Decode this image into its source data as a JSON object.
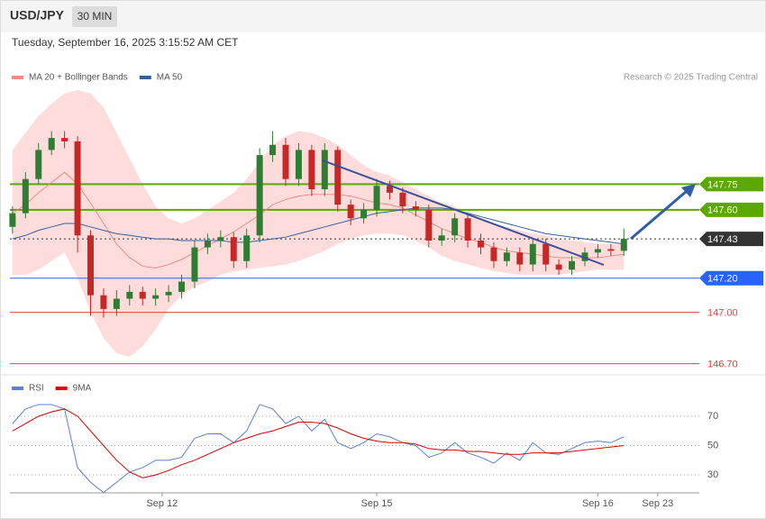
{
  "header": {
    "symbol": "USD/JPY",
    "interval": "30 MIN",
    "timestamp": "Tuesday, September 16, 2025 3:15:52 AM CET"
  },
  "chart_data": [
    {
      "type": "candlestick",
      "source": "Research © 2025 Trading Central",
      "xlim": [
        -0.2,
        52.8
      ],
      "ylim": [
        146.64,
        148.3
      ],
      "candles": {
        "up_color": "#2e7d32",
        "down_color": "#c62828",
        "open": [
          147.5,
          147.58,
          147.78,
          147.95,
          148.02,
          148.0,
          147.45,
          147.1,
          147.02,
          147.08,
          147.12,
          147.08,
          147.1,
          147.12,
          147.18,
          147.38,
          147.42,
          147.44,
          147.3,
          147.45,
          147.92,
          147.98,
          147.78,
          147.95,
          147.72,
          147.95,
          147.63,
          147.55,
          147.6,
          147.74,
          147.7,
          147.62,
          147.6,
          147.42,
          147.45,
          147.55,
          147.42,
          147.38,
          147.3,
          147.35,
          147.28,
          147.4,
          147.28,
          147.25,
          147.3,
          147.35,
          147.37,
          147.36
        ],
        "high": [
          147.62,
          147.82,
          147.99,
          148.06,
          148.06,
          148.03,
          147.48,
          147.14,
          147.13,
          147.16,
          147.15,
          147.14,
          147.16,
          147.22,
          147.42,
          147.46,
          147.48,
          147.47,
          147.49,
          147.96,
          148.06,
          148.02,
          147.99,
          147.98,
          147.99,
          147.97,
          147.66,
          147.64,
          147.78,
          147.77,
          147.73,
          147.65,
          147.63,
          147.49,
          147.58,
          147.58,
          147.46,
          147.41,
          147.38,
          147.38,
          147.43,
          147.43,
          147.31,
          147.33,
          147.38,
          147.4,
          147.4,
          147.49
        ],
        "low": [
          147.46,
          147.55,
          147.75,
          147.92,
          147.96,
          147.35,
          146.98,
          146.97,
          146.98,
          147.04,
          147.04,
          147.04,
          147.06,
          147.08,
          147.14,
          147.34,
          147.38,
          147.26,
          147.26,
          147.41,
          147.88,
          147.74,
          147.74,
          147.68,
          147.68,
          147.59,
          147.51,
          147.52,
          147.56,
          147.66,
          147.58,
          147.56,
          147.38,
          147.39,
          147.41,
          147.38,
          147.34,
          147.26,
          147.27,
          147.24,
          147.24,
          147.24,
          147.22,
          147.22,
          147.27,
          147.32,
          147.33,
          147.33
        ],
        "close": [
          147.58,
          147.78,
          147.95,
          148.02,
          148.0,
          147.45,
          147.1,
          147.02,
          147.08,
          147.12,
          147.08,
          147.1,
          147.12,
          147.18,
          147.38,
          147.42,
          147.44,
          147.3,
          147.45,
          147.92,
          147.98,
          147.78,
          147.95,
          147.72,
          147.95,
          147.63,
          147.55,
          147.6,
          147.74,
          147.7,
          147.62,
          147.6,
          147.42,
          147.45,
          147.55,
          147.42,
          147.38,
          147.3,
          147.35,
          147.28,
          147.4,
          147.28,
          147.25,
          147.3,
          147.35,
          147.37,
          147.36,
          147.43
        ]
      },
      "series": [
        {
          "name": "MA 20 + Bollinger Bands",
          "color": "#f28b82",
          "band_color": "#ffdcdc",
          "values": [
            147.58,
            147.63,
            147.7,
            147.76,
            147.82,
            147.75,
            147.64,
            147.52,
            147.4,
            147.32,
            147.27,
            147.26,
            147.28,
            147.31,
            147.35,
            147.39,
            147.43,
            147.47,
            147.52,
            147.57,
            147.63,
            147.66,
            147.68,
            147.69,
            147.69,
            147.69,
            147.68,
            147.66,
            147.64,
            147.63,
            147.61,
            147.57,
            147.53,
            147.49,
            147.46,
            147.43,
            147.41,
            147.38,
            147.36,
            147.35,
            147.34,
            147.33,
            147.32,
            147.32,
            147.32,
            147.32,
            147.33,
            147.34
          ],
          "upper": [
            147.95,
            148.05,
            148.15,
            148.22,
            148.28,
            148.3,
            148.28,
            148.2,
            148.05,
            147.9,
            147.75,
            147.62,
            147.55,
            147.52,
            147.55,
            147.6,
            147.65,
            147.7,
            147.78,
            147.88,
            147.98,
            148.03,
            148.06,
            148.05,
            148.02,
            147.98,
            147.92,
            147.86,
            147.82,
            147.8,
            147.76,
            147.72,
            147.68,
            147.64,
            147.62,
            147.58,
            147.55,
            147.52,
            147.5,
            147.48,
            147.46,
            147.45,
            147.43,
            147.42,
            147.41,
            147.4,
            147.4,
            147.4
          ],
          "lower": [
            147.22,
            147.22,
            147.25,
            147.3,
            147.35,
            147.2,
            147.0,
            146.85,
            146.76,
            146.74,
            146.8,
            146.9,
            147.02,
            147.1,
            147.15,
            147.18,
            147.22,
            147.24,
            147.25,
            147.26,
            147.27,
            147.28,
            147.3,
            147.33,
            147.36,
            147.4,
            147.43,
            147.45,
            147.46,
            147.46,
            147.45,
            147.42,
            147.38,
            147.33,
            147.3,
            147.28,
            147.26,
            147.24,
            147.23,
            147.22,
            147.22,
            147.22,
            147.22,
            147.23,
            147.24,
            147.25,
            147.25,
            147.25
          ]
        },
        {
          "name": "MA 50",
          "color": "#34609e",
          "values": [
            147.43,
            147.45,
            147.48,
            147.5,
            147.52,
            147.52,
            147.5,
            147.48,
            147.46,
            147.45,
            147.44,
            147.43,
            147.43,
            147.42,
            147.42,
            147.42,
            147.42,
            147.41,
            147.41,
            147.42,
            147.43,
            147.44,
            147.46,
            147.48,
            147.5,
            147.52,
            147.54,
            147.56,
            147.58,
            147.59,
            147.6,
            147.61,
            147.61,
            147.61,
            147.6,
            147.58,
            147.56,
            147.54,
            147.52,
            147.5,
            147.48,
            147.46,
            147.45,
            147.44,
            147.43,
            147.42,
            147.41,
            147.4
          ]
        }
      ],
      "levels": [
        {
          "value": 147.75,
          "color": "#5aa800",
          "boxed": true
        },
        {
          "value": 147.6,
          "label": "147.60",
          "color": "#5aa800",
          "boxed": true
        },
        {
          "value": 147.43,
          "color": "#333333",
          "boxed": true
        },
        {
          "value": 147.2,
          "label": "147.20",
          "color": "#2962ff",
          "boxed": true
        },
        {
          "value": 147,
          "label": "147.00",
          "color": "#e8403a",
          "boxed": false
        },
        {
          "value": 146.7,
          "label": "146.70",
          "color": "#e8403a",
          "boxed": false
        }
      ]
    },
    {
      "type": "line",
      "xlim": [
        -0.2,
        52.8
      ],
      "ylim": [
        19,
        83.5
      ],
      "yticks": [
        30,
        50,
        70
      ],
      "grid": true,
      "xticks": [
        {
          "value": 11.5,
          "label": "Sep 12"
        },
        {
          "value": 28,
          "label": "Sep 15"
        },
        {
          "value": 45,
          "label": "Sep 16"
        },
        {
          "value": 49.6,
          "label": "Sep 23"
        }
      ],
      "series": [
        {
          "name": "RSI",
          "color": "#5b7fde",
          "values": [
            65,
            75,
            78,
            78,
            75,
            35,
            25,
            18,
            25,
            32,
            35,
            40,
            40,
            42,
            55,
            58,
            58,
            52,
            60,
            78,
            75,
            65,
            70,
            60,
            68,
            52,
            48,
            52,
            58,
            56,
            52,
            50,
            42,
            45,
            52,
            45,
            42,
            38,
            45,
            40,
            52,
            45,
            44,
            48,
            52,
            53,
            52,
            56
          ]
        },
        {
          "name": "9MA",
          "color": "#e00000",
          "values": [
            60,
            65,
            70,
            73,
            75,
            70,
            60,
            50,
            40,
            32,
            28,
            30,
            33,
            37,
            40,
            44,
            48,
            52,
            55,
            58,
            60,
            63,
            66,
            66,
            65,
            62,
            58,
            55,
            53,
            52,
            52,
            51,
            48,
            47,
            47,
            46,
            46,
            45,
            44,
            44,
            45,
            45,
            45,
            46,
            47,
            48,
            49,
            50
          ]
        }
      ]
    }
  ]
}
